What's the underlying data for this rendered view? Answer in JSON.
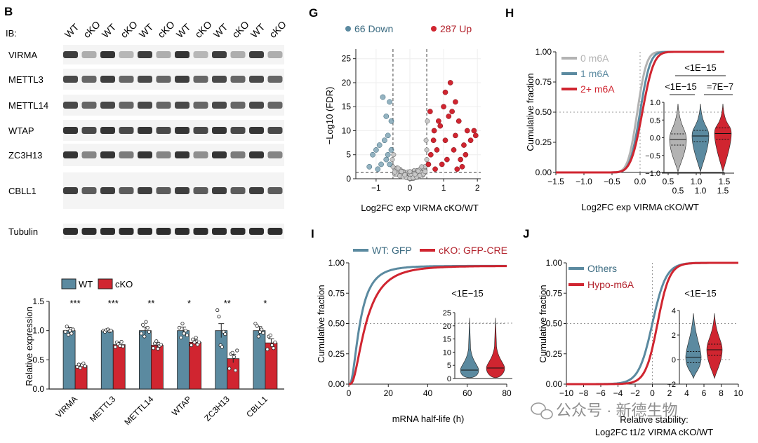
{
  "panels": {
    "B": "B",
    "G": "G",
    "H": "H",
    "I": "I",
    "J": "J"
  },
  "blot": {
    "ib_label": "IB:",
    "lanes": [
      "WT",
      "cKO",
      "WT",
      "cKO",
      "WT",
      "cKO",
      "WT",
      "cKO",
      "WT",
      "cKO",
      "WT",
      "cKO"
    ],
    "rows": [
      "VIRMA",
      "METTL3",
      "METTL14",
      "WTAP",
      "ZC3H13",
      "CBLL1",
      "Tubulin"
    ]
  },
  "colors": {
    "wt": "#5b8aa0",
    "cko": "#d02530",
    "grey": "#b3b3b3",
    "blot_bg": "#f4f4f4",
    "band": "#2a2a2a"
  },
  "watermark": "公众号 · 新德生物",
  "chart_data": [
    {
      "id": "B",
      "type": "bar",
      "categories": [
        "VIRMA",
        "METTL3",
        "METTL14",
        "WTAP",
        "ZC3H13",
        "CBLL1"
      ],
      "series": [
        {
          "name": "WT",
          "values": [
            1.0,
            1.0,
            1.0,
            1.0,
            1.0,
            1.0
          ],
          "errors": [
            0.05,
            0.02,
            0.06,
            0.06,
            0.12,
            0.07
          ]
        },
        {
          "name": "cKO",
          "values": [
            0.4,
            0.76,
            0.75,
            0.8,
            0.52,
            0.79
          ],
          "errors": [
            0.03,
            0.04,
            0.05,
            0.04,
            0.07,
            0.07
          ]
        }
      ],
      "points": {
        "WT": [
          [
            0.98,
            1.07,
            0.93,
            1.0,
            0.95,
            1.02
          ],
          [
            1.0,
            0.98,
            1.01,
            1.02,
            0.99,
            1.0
          ],
          [
            0.95,
            1.1,
            0.9,
            1.15,
            1.05,
            0.98
          ],
          [
            1.05,
            0.88,
            1.12,
            0.95,
            1.0,
            0.92
          ],
          [
            1.35,
            1.24,
            0.75,
            0.72,
            0.98,
            0.94
          ],
          [
            1.12,
            1.08,
            0.9,
            0.98,
            1.02,
            0.96
          ]
        ],
        "cKO": [
          [
            0.38,
            0.42,
            0.36,
            0.41,
            0.44,
            0.39
          ],
          [
            0.72,
            0.8,
            0.77,
            0.74,
            0.81,
            0.73
          ],
          [
            0.7,
            0.78,
            0.82,
            0.69,
            0.74,
            0.76
          ],
          [
            0.75,
            0.85,
            0.8,
            0.88,
            0.76,
            0.8
          ],
          [
            0.35,
            0.6,
            0.62,
            0.55,
            0.32,
            0.66
          ],
          [
            0.68,
            0.9,
            0.92,
            0.75,
            0.7,
            0.8
          ]
        ]
      },
      "significance": [
        "***",
        "***",
        "**",
        "*",
        "**",
        "*"
      ],
      "ylabel": "Relative expression",
      "ylim": [
        0,
        1.5
      ],
      "yticks": [
        "0.0",
        "0.5",
        "1.0",
        "1.5"
      ],
      "legend": [
        "WT",
        "cKO"
      ]
    },
    {
      "id": "G",
      "type": "scatter",
      "title_down": "66 Down",
      "title_up": "287 Up",
      "xlabel": "Log2FC exp VIRMA cKO/WT",
      "ylabel": "−Log10 (FDR)",
      "xlim": [
        -1.6,
        2.1
      ],
      "ylim": [
        0,
        27
      ],
      "xticks": [
        "−1",
        "0",
        "1",
        "2"
      ],
      "yticks": [
        "0",
        "5",
        "10",
        "15",
        "20",
        "25"
      ],
      "thresholds": {
        "x": [
          -0.5,
          0.5
        ],
        "y": 1.3
      },
      "down_points": [
        [
          -0.55,
          12
        ],
        [
          -0.6,
          16
        ],
        [
          -0.7,
          13
        ],
        [
          -0.8,
          17
        ],
        [
          -0.65,
          9
        ],
        [
          -0.75,
          8
        ],
        [
          -0.9,
          7
        ],
        [
          -0.55,
          6
        ],
        [
          -1.1,
          5
        ],
        [
          -0.85,
          3
        ],
        [
          -0.7,
          4
        ],
        [
          -1.2,
          2.5
        ],
        [
          -0.95,
          2
        ],
        [
          -0.6,
          3
        ],
        [
          -1.0,
          6
        ],
        [
          -0.65,
          5
        ]
      ],
      "up_points": [
        [
          0.55,
          3
        ],
        [
          0.62,
          5
        ],
        [
          0.7,
          8
        ],
        [
          0.85,
          12
        ],
        [
          1.0,
          15
        ],
        [
          1.05,
          18
        ],
        [
          1.15,
          13
        ],
        [
          1.2,
          20
        ],
        [
          0.9,
          11
        ],
        [
          1.3,
          6
        ],
        [
          1.35,
          9
        ],
        [
          1.5,
          4
        ],
        [
          1.6,
          7
        ],
        [
          1.7,
          10
        ],
        [
          1.9,
          10
        ],
        [
          1.95,
          9
        ],
        [
          1.4,
          2
        ],
        [
          1.1,
          4
        ],
        [
          0.8,
          6
        ],
        [
          0.72,
          10
        ],
        [
          1.25,
          14
        ],
        [
          1.45,
          12
        ],
        [
          1.65,
          5
        ],
        [
          0.95,
          3
        ],
        [
          1.55,
          2.5
        ],
        [
          1.8,
          8
        ],
        [
          0.6,
          14
        ],
        [
          0.75,
          2
        ],
        [
          1.05,
          8
        ],
        [
          1.35,
          16
        ]
      ],
      "ns_points": [
        [
          -0.4,
          1
        ],
        [
          -0.3,
          0.6
        ],
        [
          -0.2,
          0.4
        ],
        [
          -0.1,
          0.2
        ],
        [
          0.0,
          0.1
        ],
        [
          0.1,
          0.2
        ],
        [
          0.2,
          0.4
        ],
        [
          0.3,
          0.7
        ],
        [
          0.4,
          1.0
        ],
        [
          -0.45,
          1.4
        ],
        [
          0.45,
          1.5
        ],
        [
          -0.35,
          2.2
        ],
        [
          0.35,
          2.5
        ],
        [
          0.5,
          4
        ],
        [
          0.48,
          8
        ],
        [
          0.52,
          12
        ],
        [
          0.5,
          6
        ],
        [
          -0.5,
          2.5
        ],
        [
          -0.48,
          5
        ],
        [
          -0.52,
          4
        ],
        [
          0.25,
          1.6
        ],
        [
          -0.25,
          1.5
        ],
        [
          0.15,
          0.9
        ],
        [
          -0.15,
          0.8
        ]
      ],
      "legend_position": "top"
    },
    {
      "id": "H",
      "type": "line",
      "xlabel": "Log2FC exp VIRMA cKO/WT",
      "ylabel": "Cumulative fraction",
      "xlim": [
        -1.5,
        1.5
      ],
      "ylim": [
        0,
        1
      ],
      "xticks": [
        "−1.5",
        "−1.0",
        "−0.5",
        "0.0",
        "0.5",
        "1.0",
        "1.5"
      ],
      "yticks": [
        "0.00",
        "0.25",
        "0.50",
        "0.75",
        "1.00"
      ],
      "series": [
        {
          "name": "0 m6A",
          "color": "#b3b3b3",
          "mu": -0.05,
          "sigma": 0.13
        },
        {
          "name": "1 m6A",
          "color": "#5b8aa0",
          "mu": 0.0,
          "sigma": 0.14
        },
        {
          "name": "2+ m6A",
          "color": "#d02530",
          "mu": 0.04,
          "sigma": 0.16
        }
      ],
      "p_values": [
        "<1E−15",
        "<1E−15",
        "=7E−7"
      ],
      "inset": {
        "ylim": [
          -1.0,
          1.0
        ],
        "yticks": [
          "−1.0",
          "−0.5",
          "0.0",
          "0.5",
          "1.0"
        ],
        "xticks": [
          "0.5",
          "1.0",
          "1.5"
        ],
        "violins": [
          {
            "pos": 0.8,
            "median": -0.05
          },
          {
            "pos": 1.2,
            "median": 0.05
          },
          {
            "pos": 1.6,
            "median": 0.12
          }
        ]
      }
    },
    {
      "id": "I",
      "type": "line",
      "xlabel": "mRNA half-life (h)",
      "ylabel": "Cumulative fraction",
      "xlim": [
        0,
        80
      ],
      "ylim": [
        0,
        1
      ],
      "xticks": [
        "0",
        "20",
        "40",
        "60",
        "80"
      ],
      "yticks": [
        "0.00",
        "0.25",
        "0.50",
        "0.75",
        "1.00"
      ],
      "series": [
        {
          "name": "WT: GFP",
          "color": "#5b8aa0",
          "median": 5.5
        },
        {
          "name": "cKO: GFP-CRE",
          "color": "#d02530",
          "median": 8.5
        }
      ],
      "p_values": [
        "<1E−15"
      ],
      "inset": {
        "ylim": [
          0,
          25
        ],
        "yticks": [
          "0",
          "5",
          "10",
          "15",
          "20",
          "25"
        ],
        "violins": [
          {
            "median": 3.2
          },
          {
            "median": 4.0
          }
        ]
      }
    },
    {
      "id": "J",
      "type": "line",
      "xlabel": "Relative stability:",
      "xlabel2": "Log2FC t1/2 VIRMA cKO/WT",
      "ylabel": "Cumulative fraction",
      "xlim": [
        -10,
        10
      ],
      "ylim": [
        0,
        1
      ],
      "xticks": [
        "−10",
        "−8",
        "−6",
        "−4",
        "−2",
        "0",
        "2",
        "4",
        "6",
        "8",
        "10"
      ],
      "yticks": [
        "0.00",
        "0.25",
        "0.50",
        "0.75",
        "1.00"
      ],
      "series": [
        {
          "name": "Others",
          "color": "#5b8aa0",
          "mu": 0.0,
          "s": 0.8
        },
        {
          "name": "Hypo-m6A",
          "color": "#d02530",
          "mu": 0.6,
          "s": 0.7
        }
      ],
      "p_values": [
        "<1E−15"
      ],
      "inset": {
        "ylim": [
          -2,
          4
        ],
        "yticks": [
          "−2",
          "0",
          "2",
          "4"
        ],
        "violins": [
          {
            "median": 0.2
          },
          {
            "median": 0.8
          }
        ]
      }
    }
  ]
}
